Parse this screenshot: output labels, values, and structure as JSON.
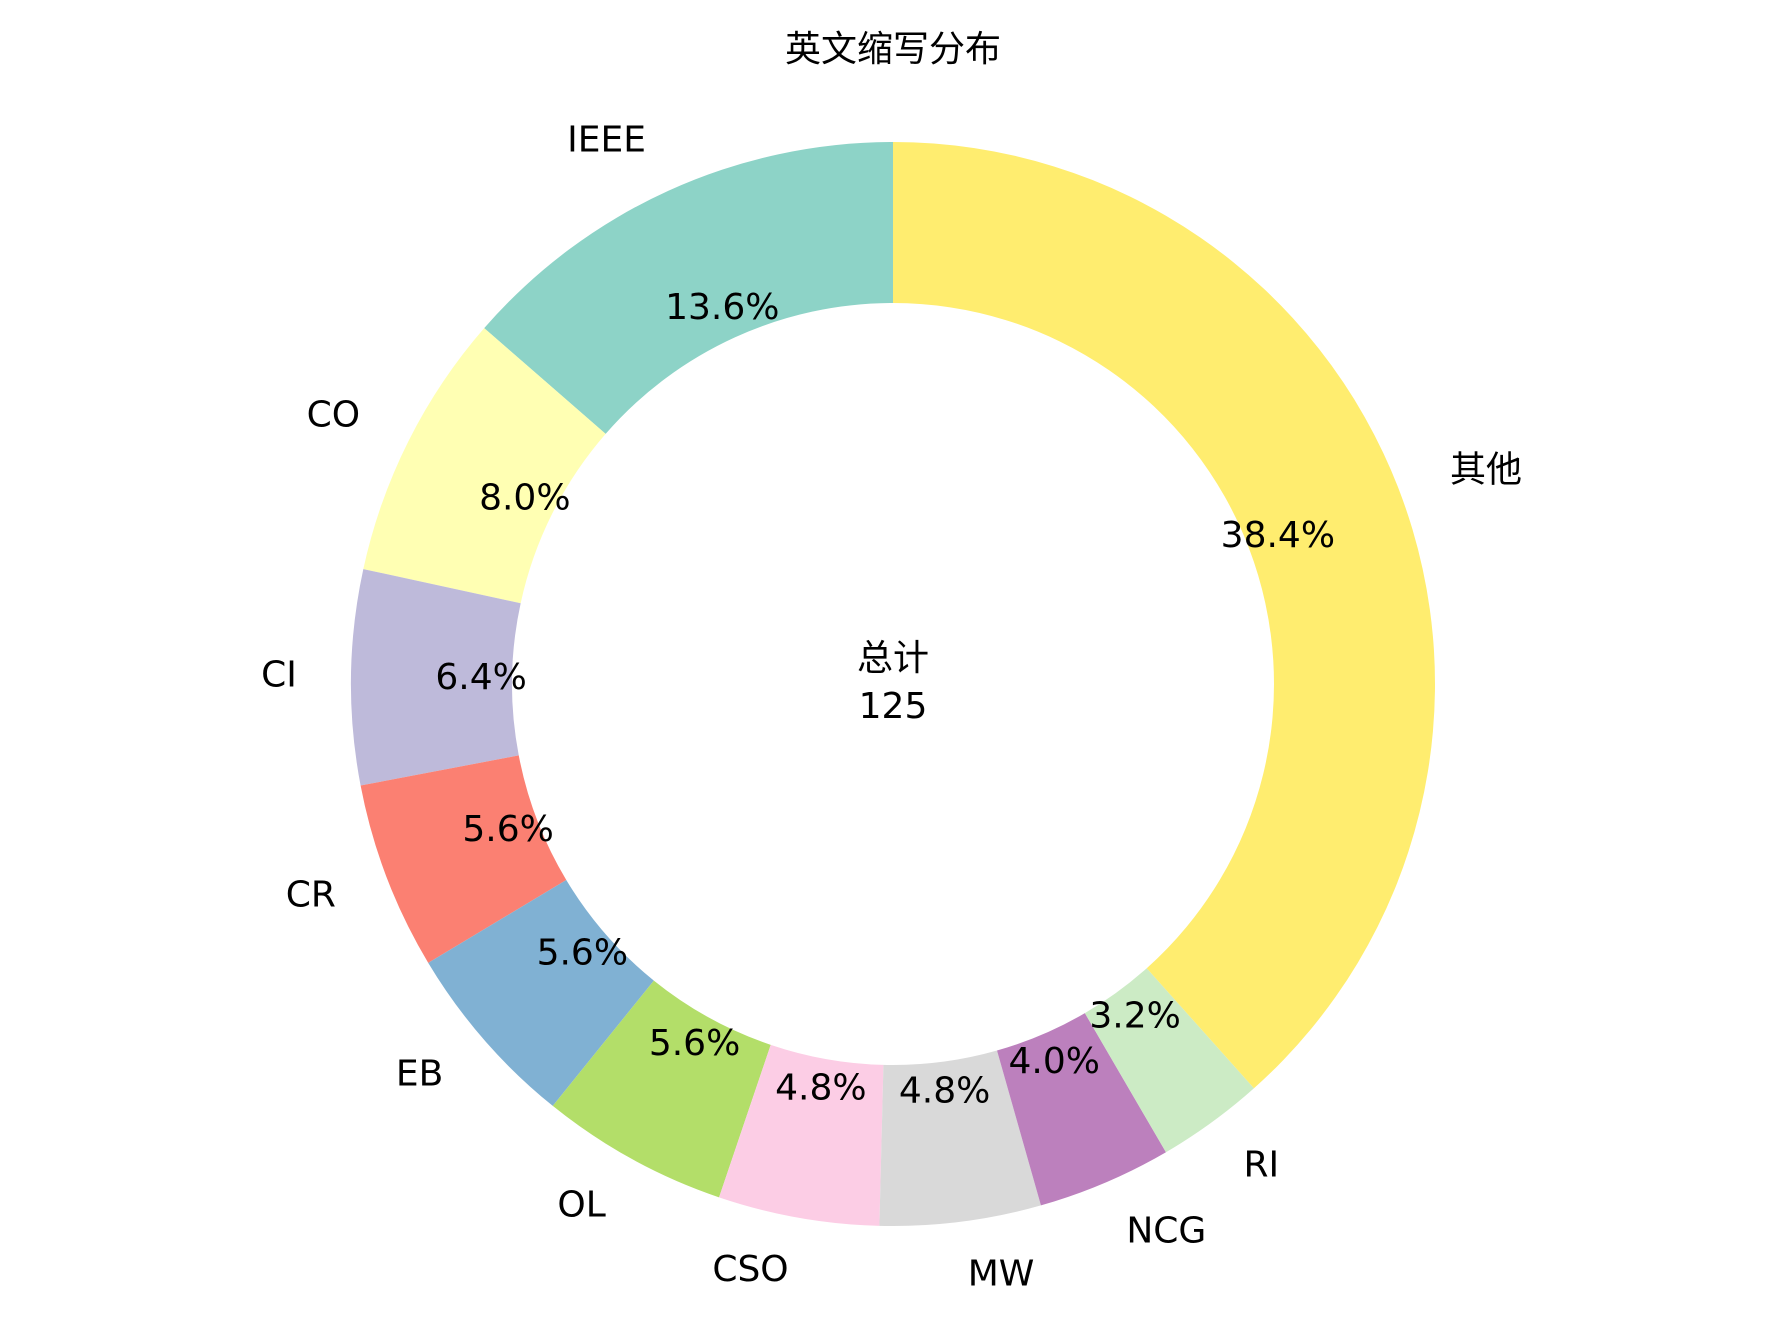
{
  "chart_data": {
    "type": "pie",
    "title": "英文缩写分布",
    "categories": [
      "IEEE",
      "CO",
      "CI",
      "CR",
      "EB",
      "OL",
      "CSO",
      "MW",
      "NCG",
      "RI",
      "其他"
    ],
    "values": [
      13.6,
      8.0,
      6.4,
      5.6,
      5.6,
      5.6,
      4.8,
      4.8,
      4.0,
      3.2,
      38.4
    ],
    "value_labels": [
      "13.6%",
      "8.0%",
      "6.4%",
      "5.6%",
      "5.6%",
      "5.6%",
      "4.8%",
      "4.8%",
      "4.0%",
      "3.2%",
      "38.4%"
    ],
    "colors": [
      "#8dd3c7",
      "#ffffb3",
      "#bebada",
      "#fb8072",
      "#80b1d3",
      "#b3de69",
      "#fccde5",
      "#d9d9d9",
      "#bc80bd",
      "#ccebc5",
      "#ffed6f"
    ],
    "center_label": "总计",
    "total": 125
  }
}
